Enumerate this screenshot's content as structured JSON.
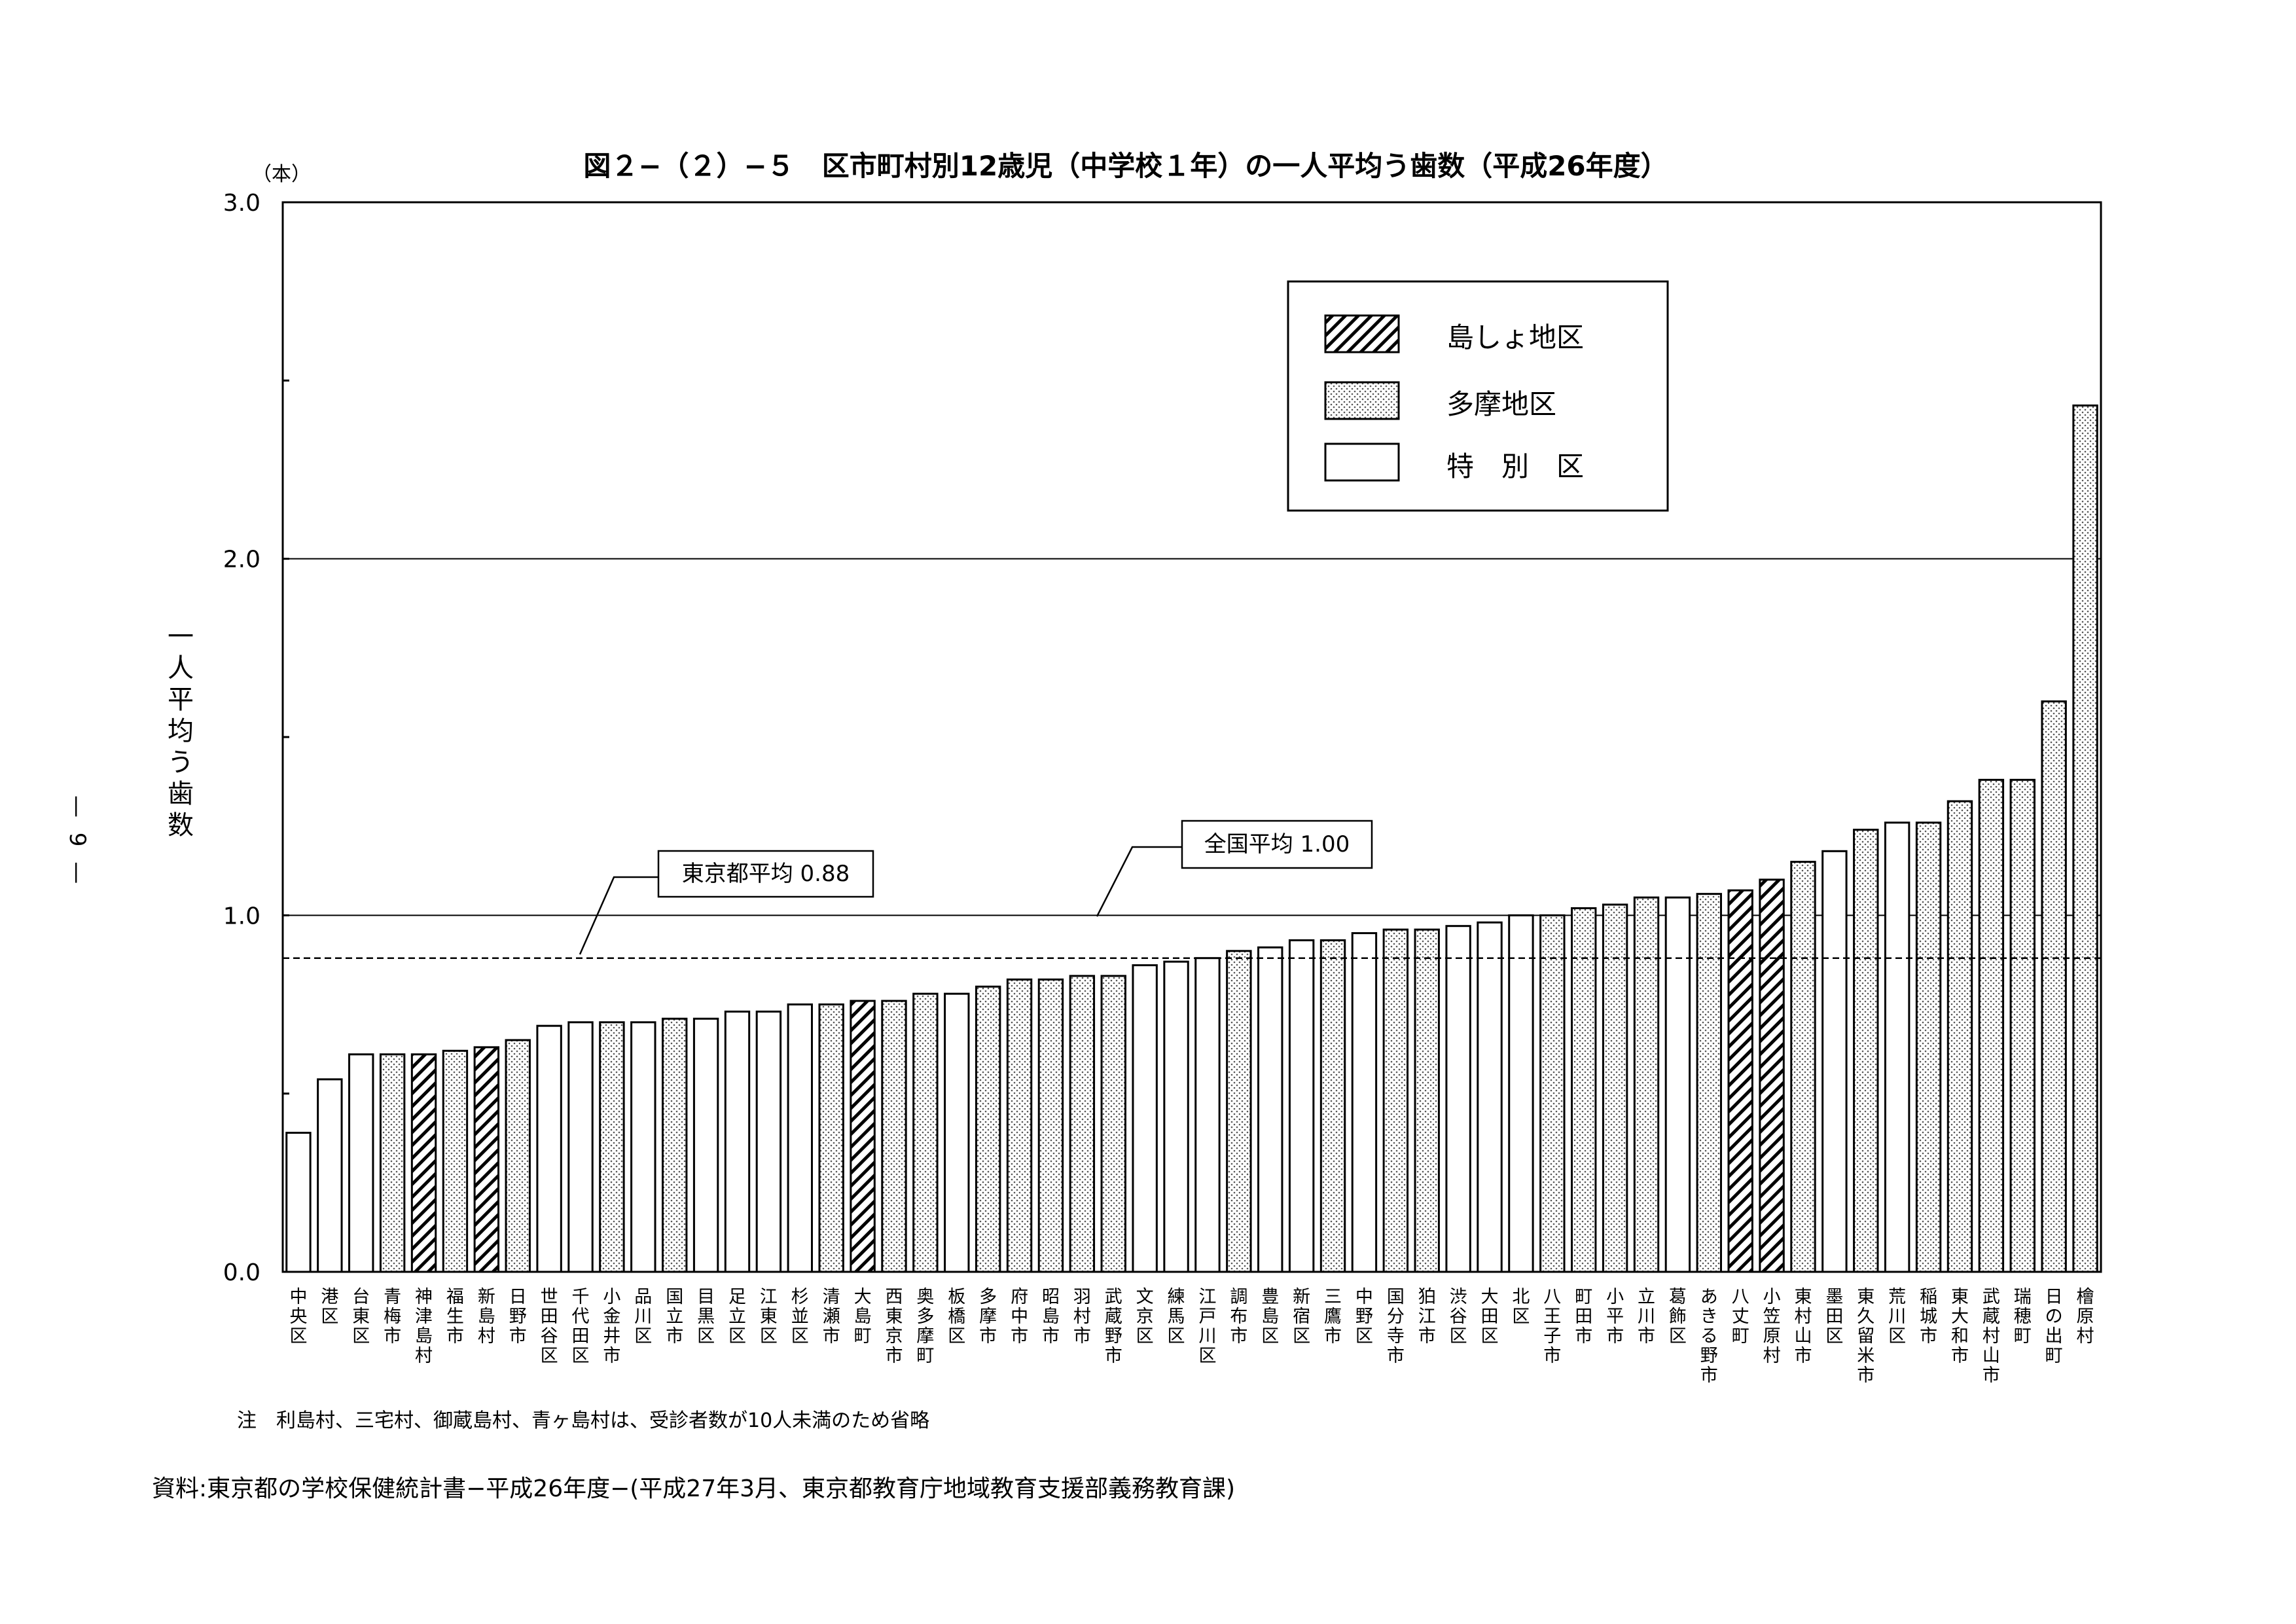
{
  "page": {
    "page_number": "— 9 —",
    "note": "注　利島村、三宅村、御蔵島村、青ヶ島村は、受診者数が10人未満のため省略",
    "source": "資料:東京都の学校保健統計書−平成26年度−(平成27年3月、東京都教育庁地域教育支援部義務教育課)"
  },
  "chart_data": {
    "type": "bar",
    "title": "図２−（２）−５　区市町村別12歳児（中学校１年）の一人平均う歯数（平成26年度）",
    "unit_label": "（本）",
    "ylabel": "一人平均う歯数",
    "ylim": [
      0,
      3
    ],
    "yticks": [
      "0.0",
      "1.0",
      "2.0",
      "3.0"
    ],
    "grid": true,
    "legend_position": "top-right",
    "legend": [
      {
        "key": "island",
        "label": "島しょ地区"
      },
      {
        "key": "tama",
        "label": "多摩地区"
      },
      {
        "key": "ward",
        "label": "特　別　区"
      }
    ],
    "reference_lines": [
      {
        "label": "東京都平均 0.88",
        "value": 0.88,
        "style": "dashed"
      },
      {
        "label": "全国平均 1.00",
        "value": 1.0,
        "style": "solid"
      }
    ],
    "colors": {
      "bar_fill": "#ffffff",
      "stroke": "#000000",
      "dot": "#555555"
    },
    "categories": [
      "中央区",
      "港区",
      "台東区",
      "青梅市",
      "神津島村",
      "福生市",
      "新島村",
      "日野市",
      "世田谷区",
      "千代田区",
      "小金井市",
      "品川区",
      "国立市",
      "目黒区",
      "足立区",
      "江東区",
      "杉並区",
      "清瀬市",
      "大島町",
      "西東京市",
      "奥多摩町",
      "板橋区",
      "多摩市",
      "府中市",
      "昭島市",
      "羽村市",
      "武蔵野市",
      "文京区",
      "練馬区",
      "江戸川区",
      "調布市",
      "豊島区",
      "新宿区",
      "三鷹市",
      "中野区",
      "国分寺市",
      "狛江市",
      "渋谷区",
      "大田区",
      "北区",
      "八王子市",
      "町田市",
      "小平市",
      "立川市",
      "葛飾区",
      "あきる野市",
      "八丈町",
      "小笠原村",
      "東村山市",
      "墨田区",
      "東久留米市",
      "荒川区",
      "稲城市",
      "東大和市",
      "武蔵村山市",
      "瑞穂町",
      "日の出町",
      "檜原村"
    ],
    "groups": [
      "ward",
      "ward",
      "ward",
      "tama",
      "island",
      "tama",
      "island",
      "tama",
      "ward",
      "ward",
      "tama",
      "ward",
      "tama",
      "ward",
      "ward",
      "ward",
      "ward",
      "tama",
      "island",
      "tama",
      "tama",
      "ward",
      "tama",
      "tama",
      "tama",
      "tama",
      "tama",
      "ward",
      "ward",
      "ward",
      "tama",
      "ward",
      "ward",
      "tama",
      "ward",
      "tama",
      "tama",
      "ward",
      "ward",
      "ward",
      "tama",
      "tama",
      "tama",
      "tama",
      "ward",
      "tama",
      "island",
      "island",
      "tama",
      "ward",
      "tama",
      "ward",
      "tama",
      "tama",
      "tama",
      "tama",
      "tama",
      "tama"
    ],
    "values": [
      0.39,
      0.54,
      0.61,
      0.61,
      0.61,
      0.62,
      0.63,
      0.65,
      0.69,
      0.7,
      0.7,
      0.7,
      0.71,
      0.71,
      0.73,
      0.73,
      0.75,
      0.75,
      0.76,
      0.76,
      0.78,
      0.78,
      0.8,
      0.82,
      0.82,
      0.83,
      0.83,
      0.86,
      0.87,
      0.88,
      0.9,
      0.91,
      0.93,
      0.93,
      0.95,
      0.96,
      0.96,
      0.97,
      0.98,
      1.0,
      1.0,
      1.02,
      1.03,
      1.05,
      1.05,
      1.06,
      1.07,
      1.1,
      1.15,
      1.18,
      1.24,
      1.26,
      1.26,
      1.32,
      1.38,
      1.38,
      1.6,
      2.43
    ]
  }
}
